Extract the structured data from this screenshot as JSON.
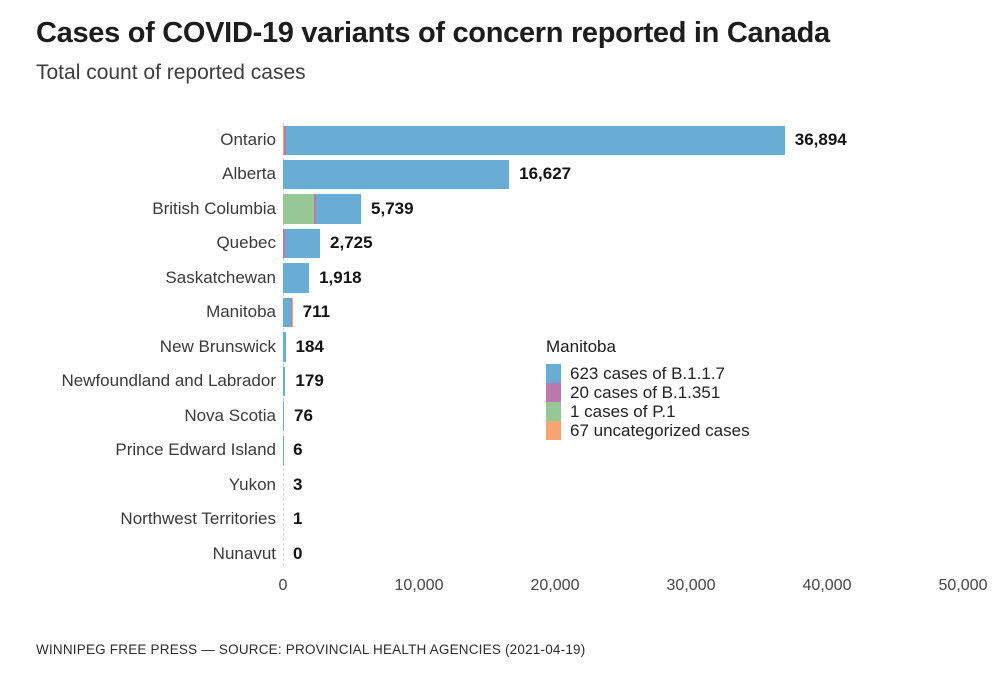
{
  "header": {
    "title": "Cases of COVID-19 variants of concern reported in Canada",
    "subtitle": "Total count of reported cases"
  },
  "colors": {
    "B.1.1.7": "#69acd4",
    "B.1.351": "#b779ae",
    "P.1": "#96c795",
    "uncategorized": "#f6a471",
    "axis_line": "#d4d4d4"
  },
  "chart_data": {
    "type": "bar",
    "orientation": "horizontal",
    "title": "Cases of COVID-19 variants of concern reported in Canada",
    "subtitle": "Total count of reported cases",
    "xlabel": "",
    "ylabel": "",
    "xlim": [
      0,
      50000
    ],
    "grid": false,
    "legend_position": "inline-tooltip",
    "series_names": [
      "B.1.1.7",
      "B.1.351",
      "P.1",
      "uncategorized"
    ],
    "x_ticks": [
      0,
      10000,
      20000,
      30000,
      40000,
      50000
    ],
    "x_tick_labels": [
      "0",
      "10,000",
      "20,000",
      "30,000",
      "40,000",
      "50,000"
    ],
    "bars": [
      {
        "label": "Ontario",
        "total": 36894,
        "total_label": "36,894",
        "segments": [
          {
            "series": "uncategorized",
            "frac": 0.0025
          },
          {
            "series": "B.1.351",
            "frac": 0.0035
          },
          {
            "series": "B.1.1.7",
            "frac": 0.994
          }
        ]
      },
      {
        "label": "Alberta",
        "total": 16627,
        "total_label": "16,627",
        "segments": [
          {
            "series": "B.1.1.7",
            "frac": 1
          }
        ]
      },
      {
        "label": "British Columbia",
        "total": 5739,
        "total_label": "5,739",
        "segments": [
          {
            "series": "P.1",
            "frac": 0.4
          },
          {
            "series": "B.1.351",
            "frac": 0.025
          },
          {
            "series": "B.1.1.7",
            "frac": 0.575
          }
        ]
      },
      {
        "label": "Quebec",
        "total": 2725,
        "total_label": "2,725",
        "segments": [
          {
            "series": "B.1.351",
            "frac": 0.055
          },
          {
            "series": "B.1.1.7",
            "frac": 0.945
          }
        ]
      },
      {
        "label": "Saskatchewan",
        "total": 1918,
        "total_label": "1,918",
        "segments": [
          {
            "series": "B.1.1.7",
            "frac": 1
          }
        ]
      },
      {
        "label": "Manitoba",
        "total": 711,
        "total_label": "711",
        "segments": [
          {
            "series": "B.1.1.7",
            "frac": 0.8762
          },
          {
            "series": "B.1.351",
            "frac": 0.0281
          },
          {
            "series": "P.1",
            "frac": 0.0014
          },
          {
            "series": "uncategorized",
            "frac": 0.0942
          }
        ]
      },
      {
        "label": "New Brunswick",
        "total": 184,
        "total_label": "184",
        "segments": [
          {
            "series": "B.1.1.7",
            "frac": 1
          }
        ]
      },
      {
        "label": "Newfoundland and Labrador",
        "total": 179,
        "total_label": "179",
        "segments": [
          {
            "series": "B.1.1.7",
            "frac": 1
          }
        ]
      },
      {
        "label": "Nova Scotia",
        "total": 76,
        "total_label": "76",
        "segments": [
          {
            "series": "B.1.1.7",
            "frac": 1
          }
        ]
      },
      {
        "label": "Prince Edward Island",
        "total": 6,
        "total_label": "6",
        "segments": [
          {
            "series": "B.1.1.7",
            "frac": 1
          }
        ]
      },
      {
        "label": "Yukon",
        "total": 3,
        "total_label": "3",
        "segments": [
          {
            "series": "B.1.1.7",
            "frac": 1
          }
        ]
      },
      {
        "label": "Northwest Territories",
        "total": 1,
        "total_label": "1",
        "segments": [
          {
            "series": "B.1.1.7",
            "frac": 1
          }
        ]
      },
      {
        "label": "Nunavut",
        "total": 0,
        "total_label": "0",
        "segments": []
      }
    ]
  },
  "tooltip": {
    "title": "Manitoba",
    "items": [
      {
        "series": "B.1.1.7",
        "color": "#69acd4",
        "label": "623 cases of B.1.1.7"
      },
      {
        "series": "B.1.351",
        "color": "#b779ae",
        "label": "20 cases of B.1.351"
      },
      {
        "series": "P.1",
        "color": "#96c795",
        "label": "1 cases of P.1"
      },
      {
        "series": "uncategorized",
        "color": "#f6a471",
        "label": "67 uncategorized cases"
      }
    ]
  },
  "footer": {
    "source": "WINNIPEG FREE PRESS — SOURCE: PROVINCIAL HEALTH AGENCIES (2021-04-19)"
  }
}
